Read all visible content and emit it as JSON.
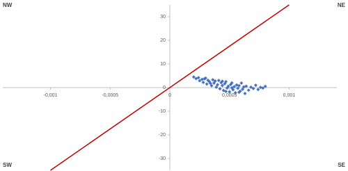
{
  "chart_data": {
    "type": "scatter",
    "corner_labels": {
      "top_left": "NW",
      "top_right": "NE",
      "bottom_left": "SW",
      "bottom_right": "SE"
    },
    "xlim": [
      -0.0014,
      0.0014
    ],
    "ylim": [
      -35,
      35
    ],
    "xticks": [
      {
        "value": -0.001,
        "label": "-0,001"
      },
      {
        "value": -0.0005,
        "label": "-0,0005"
      },
      0,
      {
        "value": 0.0005,
        "label": "0,0005"
      },
      {
        "value": 0.001,
        "label": "0,001"
      }
    ],
    "yticks": [
      -30,
      -20,
      -10,
      0,
      10,
      20,
      30
    ],
    "series": [
      {
        "type": "scatter",
        "color": "#4472c4",
        "x": [
          0.0002,
          0.00022,
          0.00024,
          0.00025,
          0.00027,
          0.00028,
          0.0003,
          0.00031,
          0.00032,
          0.00033,
          0.00035,
          0.00036,
          0.00037,
          0.00038,
          0.00039,
          0.0004,
          0.00041,
          0.00042,
          0.00043,
          0.00044,
          0.00045,
          0.00046,
          0.00047,
          0.00048,
          0.00049,
          0.0005,
          0.00051,
          0.00052,
          0.00053,
          0.00054,
          0.00055,
          0.00056,
          0.00057,
          0.00058,
          0.00059,
          0.0006,
          0.00061,
          0.00062,
          0.00063,
          0.00064,
          0.00066,
          0.00068,
          0.0007,
          0.00072,
          0.00074,
          0.00076,
          0.00078,
          0.0008,
          0.00034,
          0.00029,
          0.00044,
          0.00052,
          0.00047,
          0.00058
        ],
        "values": [
          4.5,
          3.8,
          4.2,
          2.9,
          3.5,
          2.2,
          4.0,
          1.5,
          3.1,
          2.6,
          0.8,
          3.3,
          1.9,
          2.8,
          0.2,
          1.2,
          3.0,
          -0.5,
          2.1,
          0.9,
          -1.2,
          1.6,
          2.5,
          -0.2,
          0.6,
          -1.8,
          1.3,
          2.0,
          -0.9,
          0.4,
          -2.2,
          1.1,
          -0.3,
          0.8,
          -1.5,
          1.9,
          -0.7,
          0.3,
          -2.5,
          0.6,
          -1.1,
          0.2,
          -0.4,
          1.0,
          -0.8,
          0.1,
          -0.2,
          0.5,
          1.8,
          3.7,
          2.7,
          -0.1,
          -1.6,
          -2.0
        ]
      },
      {
        "type": "line",
        "color": "#c00000",
        "x": [
          -0.001,
          0.001
        ],
        "values": [
          -35,
          35
        ]
      }
    ]
  }
}
